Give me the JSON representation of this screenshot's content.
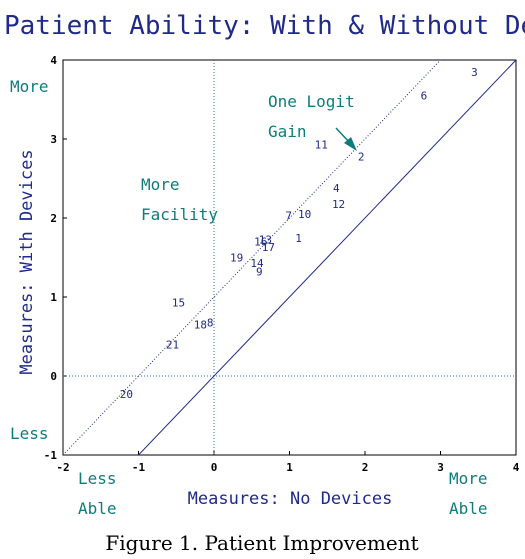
{
  "chart_data": {
    "type": "scatter",
    "title": "Patient Ability: With & Without Devices",
    "xlabel": "Measures: No Devices",
    "ylabel": "Measures: With Devices",
    "xlim": [
      -2,
      4
    ],
    "ylim": [
      -1,
      4
    ],
    "x_ticks": [
      -2,
      -1,
      0,
      1,
      2,
      3,
      4
    ],
    "y_ticks": [
      -1,
      0,
      1,
      2,
      3,
      4
    ],
    "reference_lines": [
      {
        "name": "identity",
        "style": "solid",
        "slope": 1,
        "intercept": 0
      },
      {
        "name": "one-logit-gain",
        "style": "dotted",
        "slope": 1,
        "intercept": 1
      }
    ],
    "zero_lines": {
      "x": 0,
      "y": 0,
      "style": "dotted"
    },
    "points": [
      {
        "label": "1",
        "x": 1.12,
        "y": 1.75
      },
      {
        "label": "2",
        "x": 1.95,
        "y": 2.78
      },
      {
        "label": "3",
        "x": 3.45,
        "y": 3.85
      },
      {
        "label": "4",
        "x": 1.62,
        "y": 2.38
      },
      {
        "label": "6",
        "x": 2.78,
        "y": 3.55
      },
      {
        "label": "7",
        "x": 0.99,
        "y": 2.03
      },
      {
        "label": "8",
        "x": -0.05,
        "y": 0.68
      },
      {
        "label": "9",
        "x": 0.6,
        "y": 1.32
      },
      {
        "label": "10",
        "x": 1.2,
        "y": 2.05
      },
      {
        "label": "11",
        "x": 1.42,
        "y": 2.93
      },
      {
        "label": "12",
        "x": 1.65,
        "y": 2.18
      },
      {
        "label": "13",
        "x": 0.68,
        "y": 1.73
      },
      {
        "label": "14",
        "x": 0.57,
        "y": 1.43
      },
      {
        "label": "15",
        "x": -0.47,
        "y": 0.93
      },
      {
        "label": "16",
        "x": 0.62,
        "y": 1.7
      },
      {
        "label": "17",
        "x": 0.72,
        "y": 1.63
      },
      {
        "label": "18",
        "x": -0.18,
        "y": 0.65
      },
      {
        "label": "19",
        "x": 0.3,
        "y": 1.5
      },
      {
        "label": "20",
        "x": -1.16,
        "y": -0.23
      },
      {
        "label": "21",
        "x": -0.55,
        "y": 0.4
      }
    ],
    "annotations": {
      "more_y": "More",
      "less_y": "Less",
      "more_facility": [
        "More",
        "Facility"
      ],
      "one_logit_gain": [
        "One Logit",
        "Gain"
      ],
      "less_able": [
        "Less",
        "Able"
      ],
      "more_able": [
        "More",
        "Able"
      ]
    },
    "grid": false,
    "colors": {
      "text": "#1f2a8a",
      "annotation": "#0f7c7c",
      "axes": "#000000"
    }
  },
  "caption": "Figure 1.  Patient Improvement"
}
